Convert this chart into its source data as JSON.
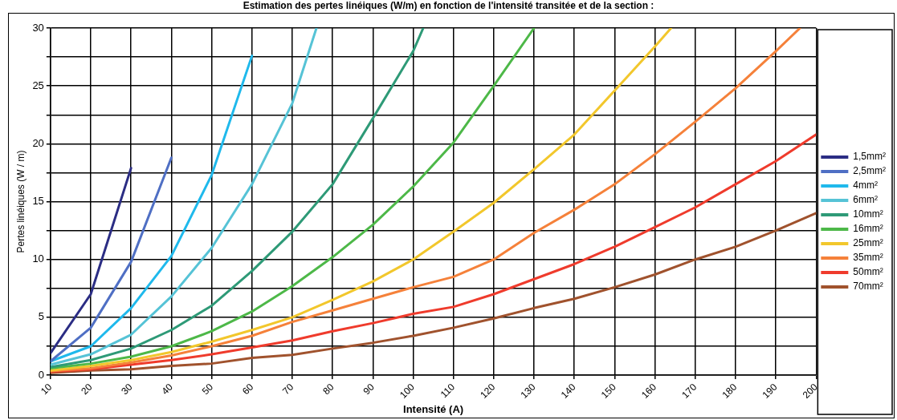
{
  "chart_data": {
    "type": "line",
    "title": "Estimation des pertes linéiques (W/m) en fonction de l'intensité transitée et de la section :",
    "xlabel": "Intensité (A)",
    "ylabel": "Pertes linéiques (W / m)",
    "xlim": [
      10,
      200
    ],
    "xticks": [
      10,
      20,
      30,
      40,
      50,
      60,
      70,
      80,
      90,
      100,
      110,
      120,
      130,
      140,
      150,
      160,
      170,
      180,
      190,
      200
    ],
    "ylim": [
      0,
      30
    ],
    "yticks": [
      0,
      {
        "value": 2.5,
        "label": null
      },
      5,
      {
        "value": 7.5,
        "label": null
      },
      10,
      {
        "value": 12.5,
        "label": null
      },
      15,
      {
        "value": 17.5,
        "label": null
      },
      20,
      {
        "value": 22.5,
        "label": null
      },
      25,
      {
        "value": 27.5,
        "label": null
      },
      30
    ],
    "grid": true,
    "legend": "right",
    "marker": "none",
    "line_style": "solid",
    "series": [
      {
        "name": "1,5mm²",
        "color": "#2b2d84",
        "x": [
          10,
          20,
          30
        ],
        "values": [
          1.9,
          7.0,
          17.9
        ]
      },
      {
        "name": "2,5mm²",
        "color": "#4f6fc4",
        "x": [
          10,
          20,
          30,
          40
        ],
        "values": [
          1.2,
          4.1,
          9.8,
          18.8
        ]
      },
      {
        "name": "4mm²",
        "color": "#1fb9ec",
        "x": [
          10,
          20,
          30,
          40,
          50,
          60
        ],
        "values": [
          1.2,
          2.5,
          5.8,
          10.3,
          17.3,
          27.6
        ]
      },
      {
        "name": "6mm²",
        "color": "#56c3d6",
        "x": [
          10,
          20,
          30,
          40,
          50,
          60,
          70,
          76
        ],
        "values": [
          0.9,
          1.8,
          3.5,
          6.8,
          11.0,
          16.5,
          23.5,
          30
        ]
      },
      {
        "name": "10mm²",
        "color": "#2e9a77",
        "x": [
          10,
          20,
          30,
          40,
          50,
          60,
          70,
          80,
          90,
          100,
          102.5
        ],
        "values": [
          0.7,
          1.3,
          2.3,
          3.9,
          6.0,
          9.0,
          12.4,
          16.5,
          22.2,
          28,
          30
        ]
      },
      {
        "name": "16mm²",
        "color": "#4db848",
        "x": [
          10,
          20,
          30,
          40,
          50,
          60,
          70,
          80,
          90,
          100,
          110,
          120,
          130
        ],
        "values": [
          0.6,
          1.0,
          1.6,
          2.5,
          3.8,
          5.5,
          7.7,
          10.2,
          13.0,
          16.3,
          20.1,
          25,
          30
        ]
      },
      {
        "name": "25mm²",
        "color": "#f2c72c",
        "x": [
          10,
          20,
          30,
          40,
          50,
          60,
          70,
          80,
          90,
          100,
          110,
          120,
          130,
          140,
          150,
          160,
          164
        ],
        "values": [
          0.4,
          0.8,
          1.3,
          2.0,
          2.9,
          3.9,
          5.0,
          6.5,
          8.1,
          10.0,
          12.4,
          14.9,
          17.8,
          20.8,
          24.6,
          28.4,
          30
        ]
      },
      {
        "name": "35mm²",
        "color": "#f5813a",
        "x": [
          10,
          20,
          30,
          40,
          50,
          60,
          70,
          80,
          90,
          100,
          110,
          120,
          130,
          140,
          150,
          160,
          170,
          180,
          190,
          196
        ],
        "values": [
          0.35,
          0.6,
          1.1,
          1.7,
          2.5,
          3.4,
          4.6,
          5.6,
          6.6,
          7.6,
          8.5,
          10.0,
          12.3,
          14.3,
          16.5,
          19.1,
          21.9,
          24.8,
          28,
          30
        ]
      },
      {
        "name": "50mm²",
        "color": "#ef3b2c",
        "x": [
          10,
          20,
          30,
          40,
          50,
          60,
          70,
          80,
          90,
          100,
          110,
          120,
          130,
          140,
          150,
          160,
          170,
          180,
          190,
          200
        ],
        "values": [
          0.3,
          0.5,
          0.9,
          1.3,
          1.8,
          2.4,
          3.0,
          3.8,
          4.5,
          5.3,
          5.9,
          7.0,
          8.3,
          9.6,
          11.1,
          12.8,
          14.5,
          16.5,
          18.5,
          20.8
        ]
      },
      {
        "name": "70mm²",
        "color": "#a0522d",
        "x": [
          10,
          20,
          30,
          40,
          50,
          60,
          70,
          80,
          90,
          100,
          110,
          120,
          130,
          140,
          150,
          160,
          170,
          180,
          190,
          200
        ],
        "values": [
          0.2,
          0.4,
          0.5,
          0.8,
          1.0,
          1.5,
          1.75,
          2.3,
          2.8,
          3.4,
          4.1,
          4.9,
          5.8,
          6.6,
          7.6,
          8.7,
          10.0,
          11.1,
          12.5,
          14.0
        ]
      }
    ]
  }
}
